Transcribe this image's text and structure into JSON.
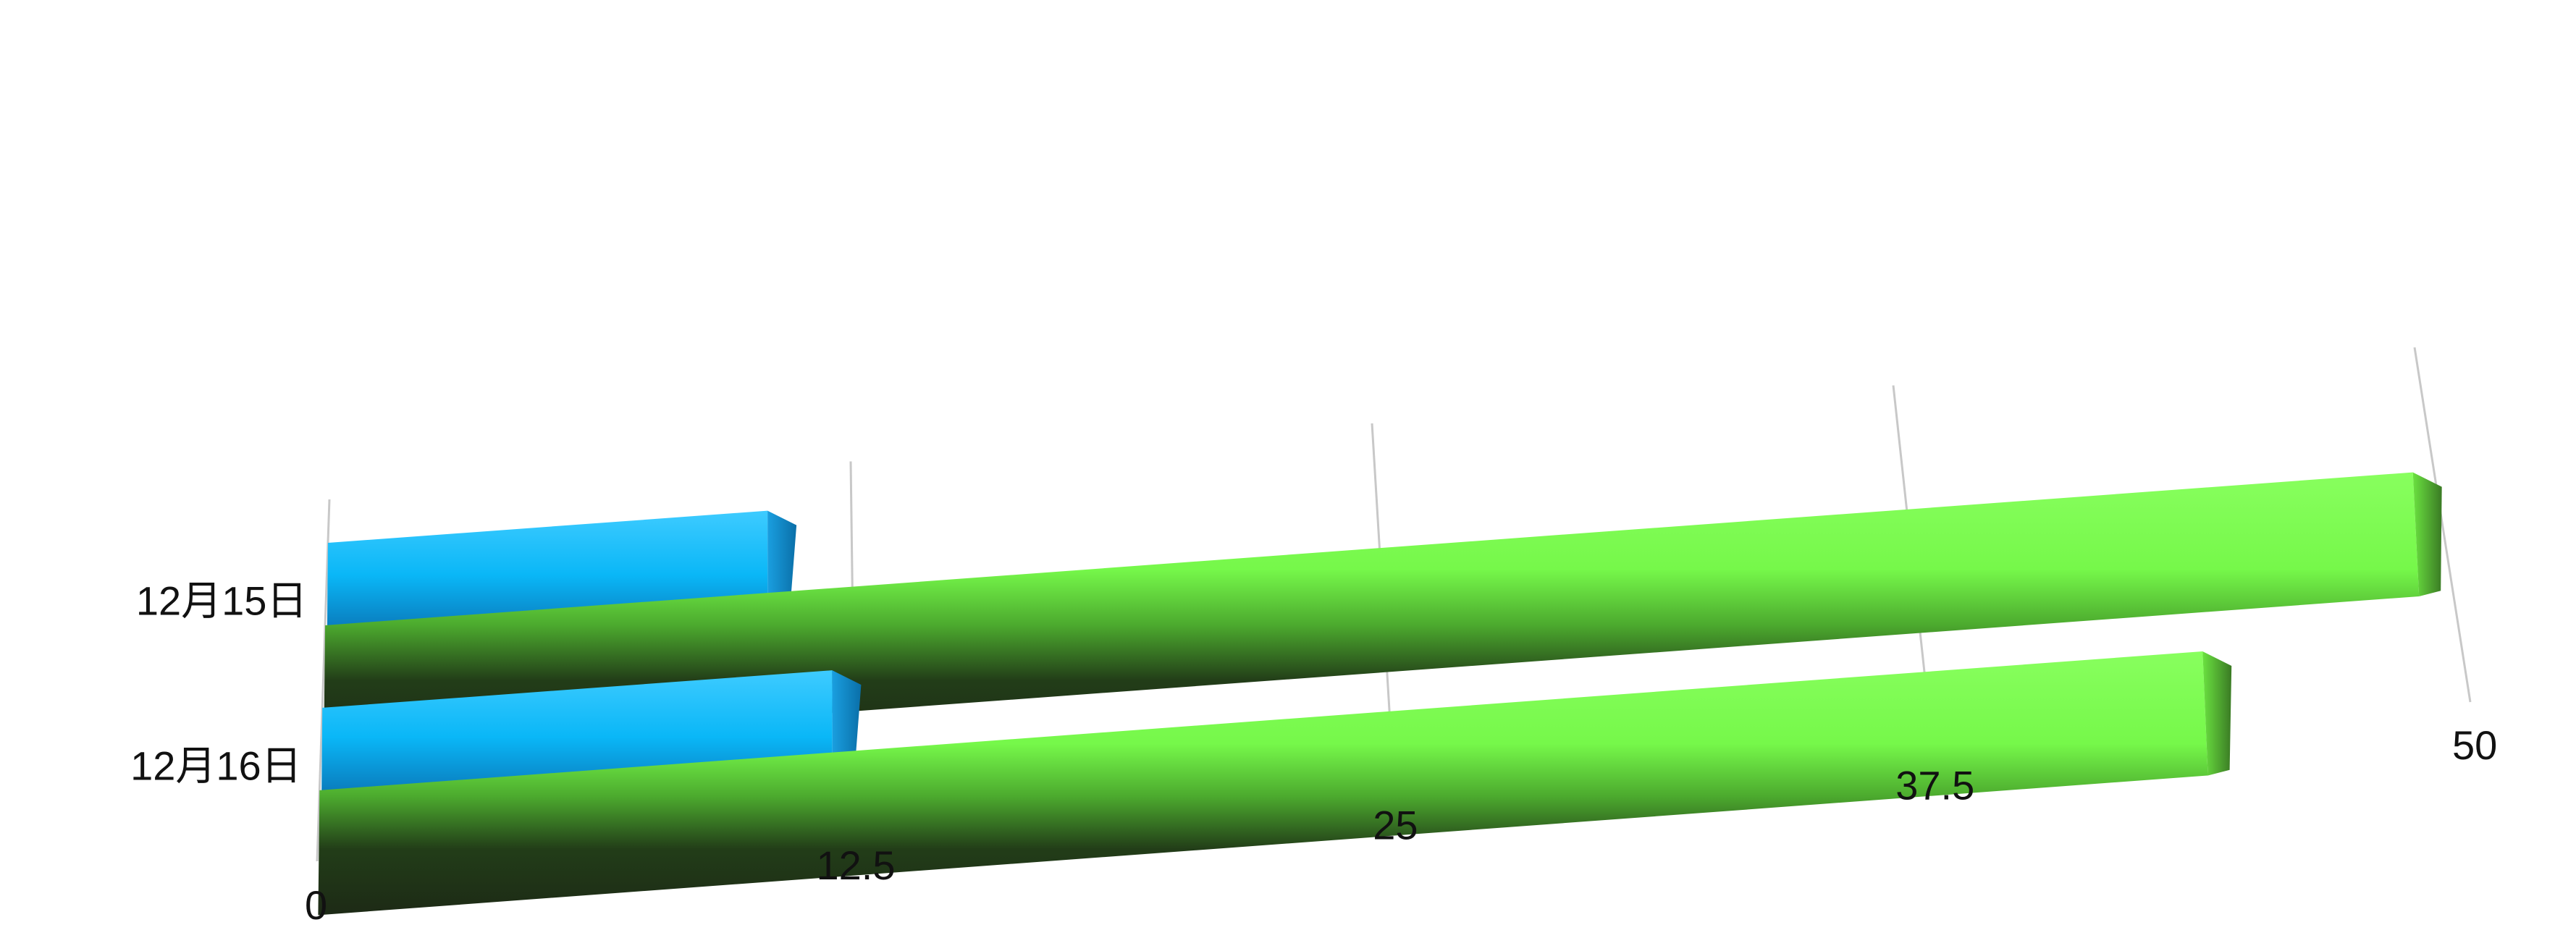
{
  "chart_data": {
    "type": "bar",
    "orientation": "horizontal",
    "style": "3d",
    "categories": [
      "12月15日",
      "12月16日"
    ],
    "series": [
      {
        "values": [
          10.5,
          12
        ],
        "color": "#0AB7F7"
      },
      {
        "values": [
          49.5,
          44
        ],
        "color": "#76F84A"
      }
    ],
    "x_ticks": [
      "0",
      "12.5",
      "25",
      "37.5",
      "50"
    ],
    "xlim": [
      0,
      50
    ],
    "grid": true,
    "legend": "none",
    "title": "",
    "xlabel": "",
    "ylabel": ""
  }
}
